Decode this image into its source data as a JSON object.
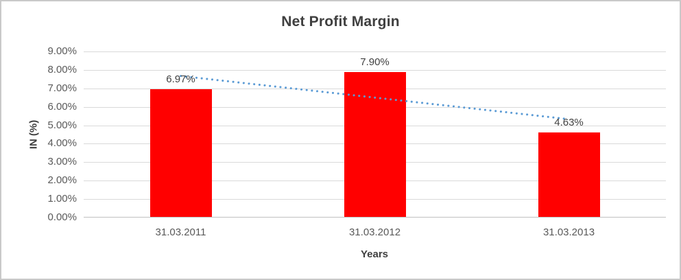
{
  "window": {
    "background": "#FFFFFF",
    "frame_border_color": "#C9C9C9"
  },
  "chart_data": {
    "type": "bar",
    "title": "Net Profit Margin",
    "xlabel": "Years",
    "ylabel": "IN (%)",
    "categories": [
      "31.03.2011",
      "31.03.2012",
      "31.03.2013"
    ],
    "values": [
      6.97,
      7.9,
      4.63
    ],
    "data_labels": [
      "6.97%",
      "7.90%",
      "4.63%"
    ],
    "y_ticks": [
      "0.00%",
      "1.00%",
      "2.00%",
      "3.00%",
      "4.00%",
      "5.00%",
      "6.00%",
      "7.00%",
      "8.00%",
      "9.00%"
    ],
    "ylim": [
      0,
      9
    ],
    "grid": true,
    "legend_position": "none",
    "bar_color": "#FF0000",
    "gridline_color": "#D9D9D9",
    "axis_line_color": "#BFBFBF",
    "title_color": "#3F3F3F",
    "axis_title_color": "#404040",
    "tick_label_color": "#595959",
    "data_label_color": "#404040",
    "trendline": {
      "type": "linear",
      "style": "dotted",
      "color": "#5B9BD5",
      "start_value": 7.67,
      "end_value": 5.33
    }
  }
}
